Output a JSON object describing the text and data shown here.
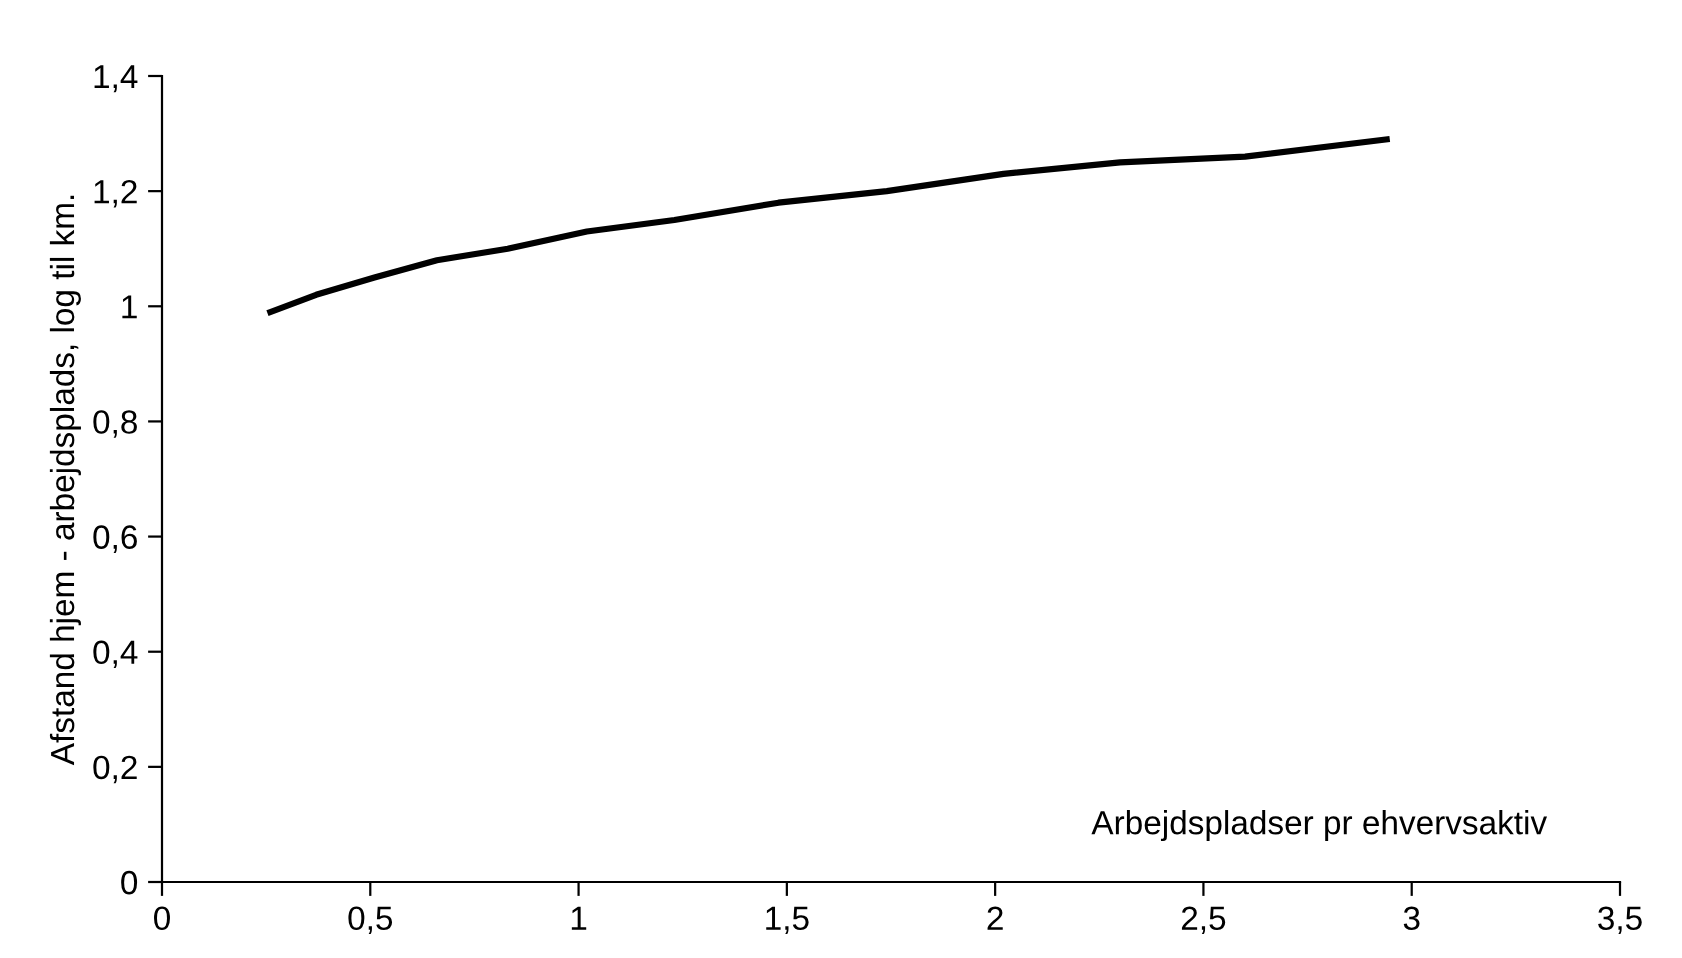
{
  "chart_data": {
    "type": "line",
    "xlabel": "Arbejdspladser pr ehvervsaktiv",
    "ylabel": "Afstand hjem - arbejdsplads, log til km.",
    "series": [
      {
        "color": "#000000",
        "x": [
          0.26,
          0.37,
          0.51,
          0.66,
          0.83,
          1.02,
          1.23,
          1.48,
          1.74,
          2.02,
          2.3,
          2.6,
          2.94
        ],
        "values": [
          0.99,
          1.02,
          1.05,
          1.08,
          1.1,
          1.13,
          1.15,
          1.18,
          1.2,
          1.23,
          1.25,
          1.26,
          1.29
        ]
      }
    ],
    "xlim": [
      0,
      3.5
    ],
    "ylim": [
      0,
      1.4
    ],
    "xticks": [
      0,
      {
        "value": 0.5,
        "label": "0,5"
      },
      1,
      {
        "value": 1.5,
        "label": "1,5"
      },
      2,
      {
        "value": 2.5,
        "label": "2,5"
      },
      3,
      {
        "value": 3.5,
        "label": "3,5"
      }
    ],
    "yticks": [
      0,
      {
        "value": 0.2,
        "label": "0,2"
      },
      {
        "value": 0.4,
        "label": "0,4"
      },
      {
        "value": 0.6,
        "label": "0,6"
      },
      {
        "value": 0.8,
        "label": "0,8"
      },
      1,
      {
        "value": 1.2,
        "label": "1,2"
      },
      {
        "value": 1.4,
        "label": "1,4"
      }
    ],
    "grid": false,
    "legend": false,
    "marker": "none",
    "line_style": "solid"
  }
}
